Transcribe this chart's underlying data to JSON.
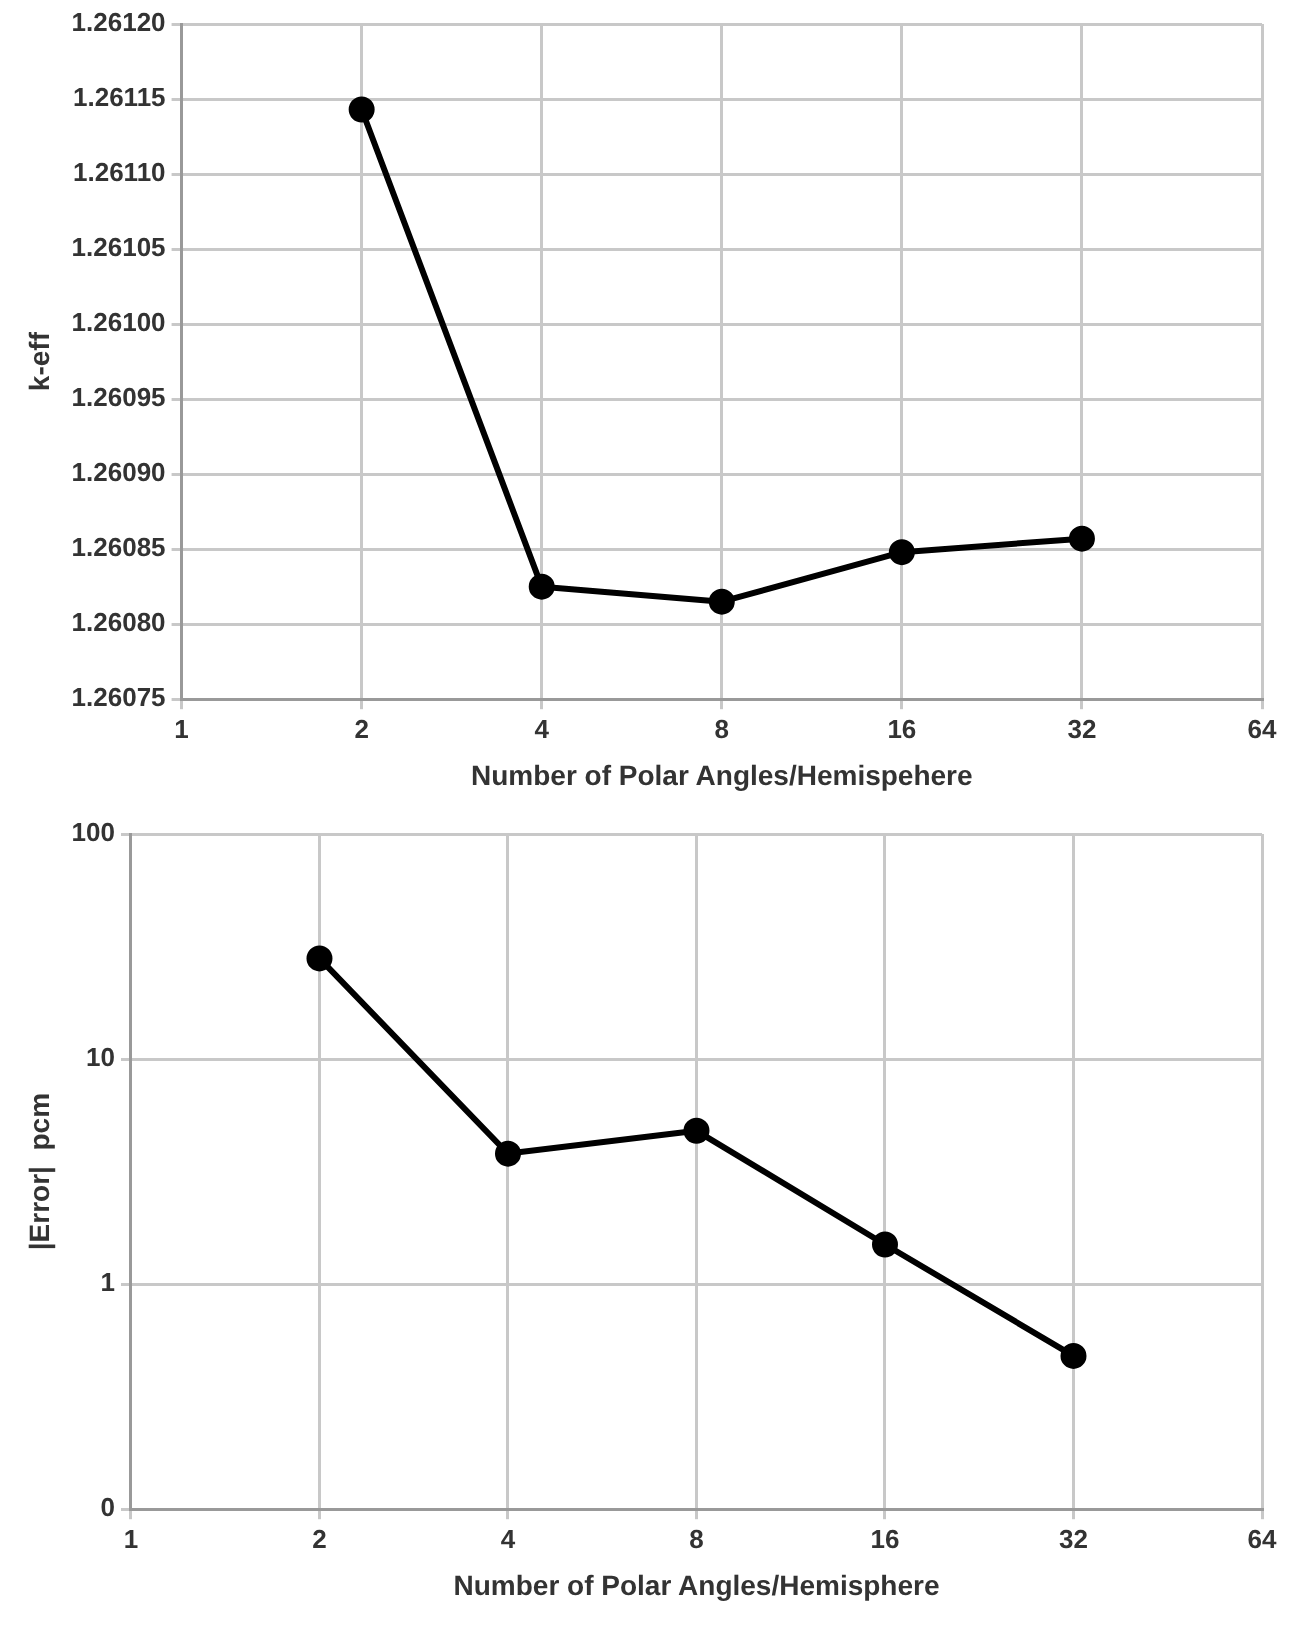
{
  "chart_data": [
    {
      "type": "line",
      "xlabel": "Number of Polar Angles/Hemispehere",
      "ylabel": "k-eff",
      "x": [
        2,
        4,
        8,
        16,
        32
      ],
      "series": [
        {
          "color": "#000000",
          "values": [
            1.261143,
            1.260825,
            1.260815,
            1.260848,
            1.260857
          ]
        }
      ],
      "xlim": [
        1,
        64
      ],
      "xticks": [
        1,
        2,
        4,
        8,
        16,
        32,
        64
      ],
      "ylim": [
        1.26075,
        1.2612
      ],
      "yticks": [
        {
          "value": 1.26075,
          "label": "1.26075"
        },
        {
          "value": 1.2608,
          "label": "1.26080"
        },
        {
          "value": 1.26085,
          "label": "1.26085"
        },
        {
          "value": 1.2609,
          "label": "1.26090"
        },
        {
          "value": 1.26095,
          "label": "1.26095"
        },
        {
          "value": 1.261,
          "label": "1.26100"
        },
        {
          "value": 1.26105,
          "label": "1.26105"
        },
        {
          "value": 1.2611,
          "label": "1.26110"
        },
        {
          "value": 1.26115,
          "label": "1.26115"
        },
        {
          "value": 1.2612,
          "label": "1.26120"
        }
      ],
      "log": "x",
      "grid": true,
      "legend": false,
      "marker": "circle",
      "line_style": "solid"
    },
    {
      "type": "line",
      "xlabel": "Number of Polar Angles/Hemisphere",
      "ylabel": "|Error|  pcm",
      "x": [
        2,
        4,
        8,
        16,
        32
      ],
      "series": [
        {
          "color": "#000000",
          "values": [
            28,
            3.8,
            4.8,
            1.5,
            0.48
          ]
        }
      ],
      "xlim": [
        1,
        64
      ],
      "xticks": [
        1,
        2,
        4,
        8,
        16,
        32,
        64
      ],
      "ylim": [
        0.1,
        100
      ],
      "yticks": [
        {
          "value": 0.1,
          "label": "0"
        },
        1,
        10,
        100
      ],
      "log": "xy",
      "grid": true,
      "legend": false,
      "marker": "circle",
      "line_style": "solid"
    }
  ]
}
